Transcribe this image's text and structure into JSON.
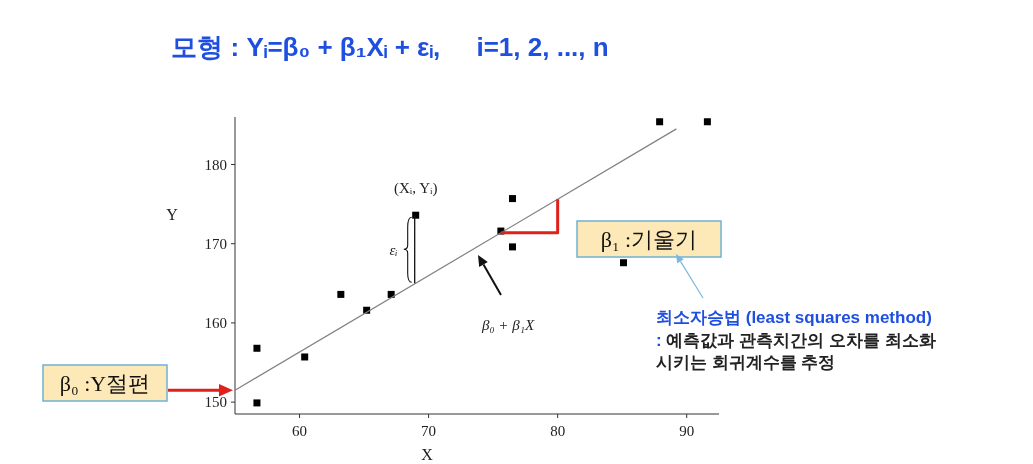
{
  "chart_data": {
    "type": "scatter",
    "title": "모형 : Yᵢ=β₀ + β₁Xᵢ + εᵢ,     i=1, 2, ..., n",
    "xlabel": "X",
    "ylabel": "Y",
    "xlim": [
      55,
      92.5
    ],
    "ylim": [
      148.5,
      186
    ],
    "xticks": [
      60,
      70,
      80,
      90
    ],
    "yticks": [
      150,
      160,
      170,
      180
    ],
    "series": [
      {
        "type": "scatter",
        "marker": "square",
        "color": "#000000",
        "x": [
          56.7,
          56.7,
          60.4,
          63.2,
          65.2,
          67.1,
          69.0,
          75.6,
          76.5,
          76.5,
          85.1,
          87.9,
          91.6
        ],
        "values": [
          156.8,
          149.9,
          155.7,
          163.6,
          161.6,
          163.6,
          173.6,
          171.6,
          175.7,
          169.6,
          167.6,
          185.4,
          185.4
        ]
      },
      {
        "type": "line",
        "marker": "none",
        "color": "#808080",
        "x": [
          55,
          89.2
        ],
        "values": [
          151.5,
          184.5
        ]
      }
    ],
    "annotations": [
      {
        "text": "(Xᵢ, Yᵢ)",
        "x": 69.0,
        "y": 173.6
      },
      "εᵢ",
      "β₀ + β₁X",
      "β₀ :Y절편",
      {
        "text": "β₁ :기울기",
        "x": 80,
        "y": 175.6
      },
      "최소자승법 (least squares method)",
      ": 예측값과 관측치간의 오차를 최소화 시키는 회귀계수를 추정"
    ]
  }
}
